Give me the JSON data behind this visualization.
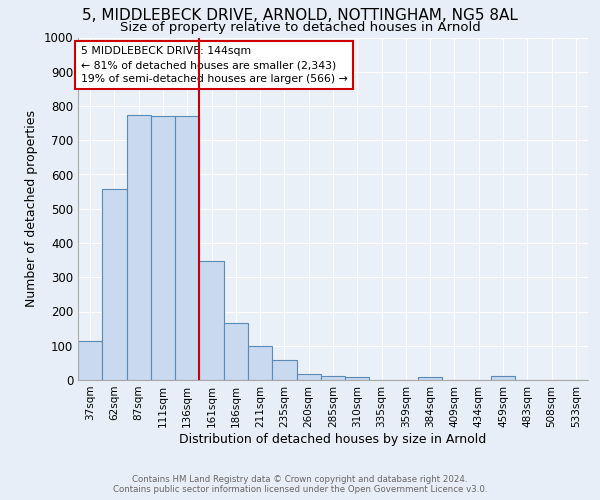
{
  "title": "5, MIDDLEBECK DRIVE, ARNOLD, NOTTINGHAM, NG5 8AL",
  "subtitle": "Size of property relative to detached houses in Arnold",
  "xlabel": "Distribution of detached houses by size in Arnold",
  "ylabel": "Number of detached properties",
  "footnote1": "Contains HM Land Registry data © Crown copyright and database right 2024.",
  "footnote2": "Contains public sector information licensed under the Open Government Licence v3.0.",
  "bar_labels": [
    "37sqm",
    "62sqm",
    "87sqm",
    "111sqm",
    "136sqm",
    "161sqm",
    "186sqm",
    "211sqm",
    "235sqm",
    "260sqm",
    "285sqm",
    "310sqm",
    "335sqm",
    "359sqm",
    "384sqm",
    "409sqm",
    "434sqm",
    "459sqm",
    "483sqm",
    "508sqm",
    "533sqm"
  ],
  "bar_values": [
    113,
    557,
    775,
    770,
    770,
    347,
    165,
    98,
    57,
    18,
    13,
    10,
    0,
    0,
    8,
    0,
    0,
    12,
    0,
    0,
    0
  ],
  "bar_color": "#c9d9f0",
  "bar_edge_color": "#5b8ab5",
  "vline_x_index": 4,
  "vline_color": "#cc0000",
  "annotation_line1": "5 MIDDLEBECK DRIVE: 144sqm",
  "annotation_line2": "← 81% of detached houses are smaller (2,343)",
  "annotation_line3": "19% of semi-detached houses are larger (566) →",
  "annotation_box_edge": "#cc0000",
  "ylim": [
    0,
    1000
  ],
  "yticks": [
    0,
    100,
    200,
    300,
    400,
    500,
    600,
    700,
    800,
    900,
    1000
  ],
  "bg_color": "#e8eef7",
  "plot_bg_color": "#eaf0f8",
  "title_fontsize": 11,
  "subtitle_fontsize": 9.5,
  "ylabel_fontsize": 9,
  "xlabel_fontsize": 9
}
